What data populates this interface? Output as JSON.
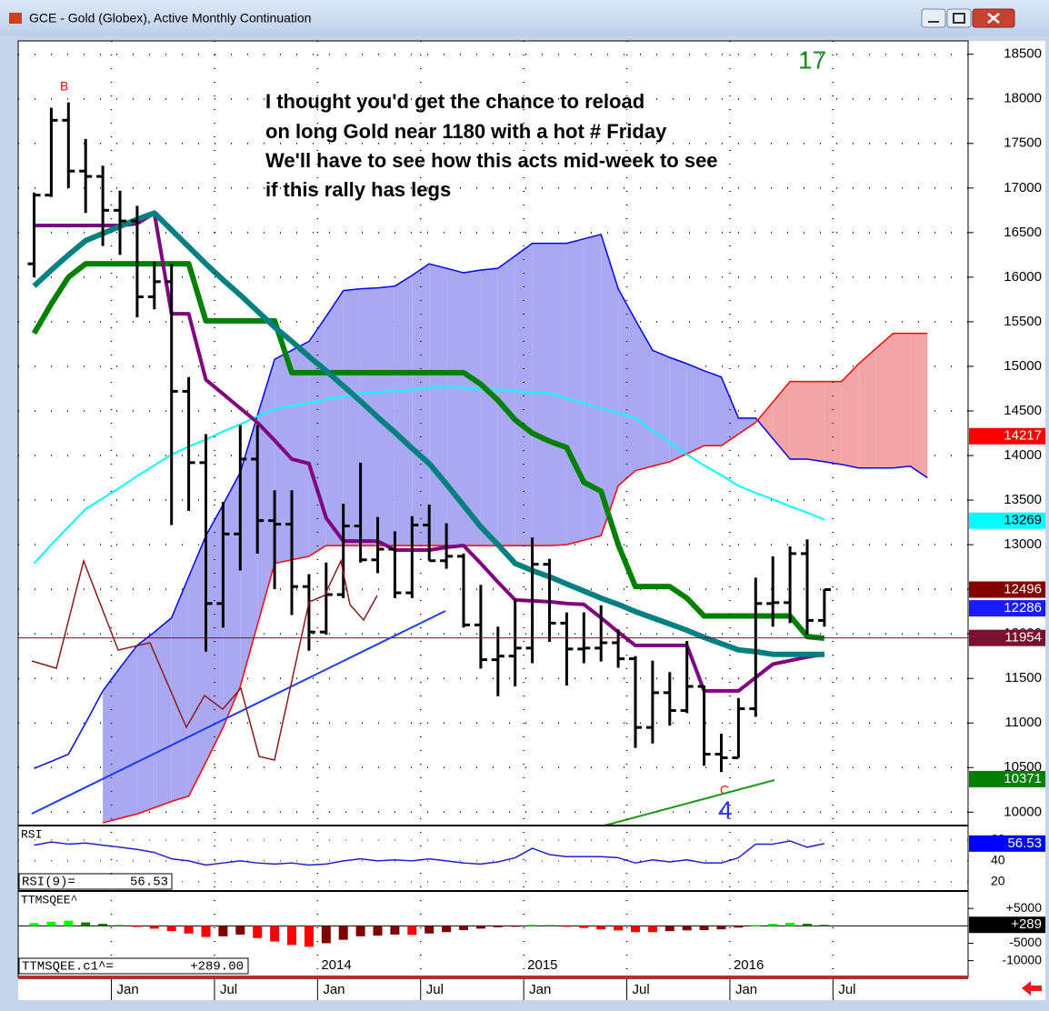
{
  "window": {
    "title": "GCE - Gold (Globex), Active Monthly Continuation"
  },
  "chart_data": {
    "type": "ohlc",
    "categories": [
      null,
      null,
      null,
      null,
      null,
      "Jan",
      null,
      null,
      null,
      null,
      null,
      "Jul",
      null,
      null,
      null,
      null,
      null,
      "Jan",
      null,
      null,
      null,
      null,
      null,
      "Jul",
      null,
      null,
      null,
      null,
      null,
      "Jan",
      null,
      null,
      null,
      null,
      null,
      "Jul",
      null,
      null,
      null,
      null,
      null,
      "Jan",
      null,
      null,
      null,
      null,
      null,
      "Jul",
      null,
      null,
      null,
      null,
      null
    ],
    "years": [
      "2014",
      "2015",
      "2016"
    ],
    "open": [
      16150,
      16920,
      17760,
      17190,
      17130,
      16750,
      16630,
      15780,
      15950,
      14720,
      13920,
      12340,
      13120,
      13960,
      13270,
      13230,
      12530,
      12020,
      12440,
      13210,
      12830,
      12950,
      12460,
      13220,
      12820,
      12870,
      12100,
      11710,
      11750,
      11840,
      12780,
      12120,
      11830,
      11840,
      11900,
      11720,
      10950,
      11340,
      11140,
      11410,
      10650,
      10610,
      11160,
      12340,
      12350,
      12900,
      12150,
      null,
      null,
      null,
      null,
      null,
      null
    ],
    "high": [
      16950,
      17900,
      17960,
      17550,
      17250,
      16970,
      16800,
      16170,
      16150,
      14880,
      14240,
      13480,
      14340,
      14340,
      13610,
      13610,
      12670,
      12800,
      13460,
      13920,
      13310,
      13150,
      13320,
      13450,
      13240,
      12900,
      12550,
      12080,
      12390,
      13080,
      12840,
      12240,
      12240,
      12320,
      12050,
      11750,
      11700,
      11570,
      11920,
      11420,
      10880,
      11280,
      12630,
      12870,
      12980,
      13060,
      12500,
      null,
      null,
      null,
      null,
      null,
      null
    ],
    "low": [
      16000,
      16900,
      17000,
      16720,
      16350,
      16250,
      15550,
      15640,
      13220,
      13380,
      11800,
      12070,
      12710,
      12900,
      12500,
      12210,
      11810,
      11990,
      12400,
      12800,
      12680,
      12400,
      12400,
      12820,
      12730,
      12070,
      11610,
      11300,
      11410,
      11670,
      11910,
      11420,
      11670,
      11690,
      11620,
      10720,
      10770,
      10970,
      11110,
      10520,
      10450,
      10610,
      11070,
      12080,
      12120,
      11990,
      12080,
      null,
      null,
      null,
      null,
      null,
      null
    ],
    "close": [
      16920,
      17760,
      17190,
      17130,
      16750,
      16630,
      15780,
      15950,
      14720,
      13920,
      12340,
      13120,
      13960,
      13270,
      13230,
      12530,
      12020,
      12440,
      13210,
      12830,
      12950,
      12460,
      13220,
      12820,
      12870,
      12100,
      11710,
      11750,
      11840,
      12780,
      12120,
      11830,
      11840,
      11900,
      11720,
      10950,
      11340,
      11140,
      11410,
      10650,
      10610,
      11160,
      12340,
      12350,
      12900,
      12150,
      12496,
      null,
      null,
      null,
      null,
      null,
      null
    ],
    "bar_color": "#000000",
    "ylim": [
      9850,
      18650
    ],
    "yticks": [
      10000,
      10500,
      11000,
      11500,
      12000,
      12500,
      13000,
      13500,
      14000,
      14500,
      15000,
      15500,
      16000,
      16500,
      17000,
      17500,
      18000,
      18500
    ],
    "grid": true,
    "overlays": [
      {
        "color": "#00ffff",
        "width": 2,
        "values": [
          12790,
          13000,
          13200,
          13400,
          13520,
          13640,
          13770,
          13890,
          14010,
          14100,
          14180,
          14270,
          14350,
          14440,
          14520,
          14560,
          14590,
          14630,
          14660,
          14700,
          14710,
          14730,
          14740,
          14760,
          14770,
          14760,
          14750,
          14740,
          14720,
          14710,
          14700,
          14640,
          14590,
          14530,
          14480,
          14420,
          14280,
          14150,
          14010,
          13890,
          13780,
          13660,
          13580,
          13510,
          13430,
          13360,
          13280,
          null,
          null,
          null,
          null,
          null,
          null
        ]
      },
      {
        "color": "#008000",
        "width": 6,
        "values": [
          15370,
          15700,
          16000,
          16150,
          16150,
          16150,
          16150,
          16150,
          16150,
          16150,
          15510,
          15510,
          15510,
          15510,
          15510,
          14930,
          14930,
          14930,
          14930,
          14930,
          14930,
          14930,
          14930,
          14930,
          14930,
          14930,
          14800,
          14620,
          14400,
          14250,
          14160,
          14090,
          13700,
          13600,
          13000,
          12530,
          12530,
          12530,
          12400,
          12200,
          12200,
          12200,
          12200,
          12200,
          12200,
          11970,
          11950,
          null,
          null,
          null,
          null,
          null,
          null
        ]
      },
      {
        "color": "#800080",
        "width": 4,
        "values": [
          16580,
          16580,
          16580,
          16580,
          16580,
          16580,
          16600,
          16720,
          15590,
          15590,
          14850,
          14690,
          14530,
          14370,
          14170,
          13960,
          13910,
          13300,
          13040,
          13040,
          13040,
          12940,
          12940,
          12940,
          12970,
          12990,
          12790,
          12580,
          12380,
          12370,
          12360,
          12340,
          12330,
          12180,
          12020,
          11870,
          11870,
          11870,
          11870,
          11360,
          11360,
          11360,
          11510,
          11660,
          11700,
          11740,
          11770,
          null,
          null,
          null,
          null,
          null,
          null
        ]
      },
      {
        "color": "#008080",
        "width": 6,
        "values": [
          15900,
          16080,
          16250,
          16410,
          16490,
          16570,
          16650,
          16720,
          16530,
          16340,
          16150,
          15970,
          15800,
          15620,
          15440,
          15280,
          15110,
          14950,
          14780,
          14610,
          14430,
          14260,
          14080,
          13910,
          13680,
          13440,
          13200,
          13000,
          12790,
          12710,
          12640,
          12560,
          12480,
          12400,
          12330,
          12250,
          12180,
          12110,
          12040,
          11960,
          11890,
          11820,
          11800,
          11770,
          11770,
          11770,
          11770,
          null,
          null,
          null,
          null,
          null,
          null
        ]
      }
    ],
    "cloud": {
      "upper": {
        "color": "#0000ff",
        "values": [
          10490,
          10570,
          10650,
          11000,
          11360,
          11620,
          11870,
          12020,
          12180,
          12640,
          13100,
          13450,
          13810,
          14450,
          15080,
          15180,
          15280,
          15560,
          15850,
          15870,
          15880,
          15900,
          16020,
          16150,
          16100,
          16050,
          16080,
          16100,
          16240,
          16380,
          16380,
          16380,
          16430,
          16480,
          15870,
          15520,
          15180,
          15100,
          15030,
          14950,
          14880,
          14420,
          14420,
          14190,
          13960,
          13960,
          13930,
          13900,
          13860,
          13860,
          13860,
          13880,
          13750
        ]
      },
      "lower": {
        "color": "#ff0000",
        "values": [
          null,
          null,
          null,
          null,
          9880,
          9930,
          9980,
          10050,
          10120,
          10180,
          10560,
          10950,
          11410,
          12100,
          12790,
          12830,
          12870,
          12990,
          12990,
          12990,
          12990,
          12990,
          12990,
          12990,
          12990,
          12990,
          12990,
          12990,
          12990,
          12990,
          12990,
          13000,
          13050,
          13100,
          13660,
          13830,
          13880,
          13930,
          14020,
          14110,
          14110,
          14240,
          14370,
          14600,
          14830,
          14830,
          14830,
          14830,
          15030,
          15200,
          15370,
          15370,
          15370
        ]
      },
      "fill_up": "#a9a9f2",
      "fill_down": "#f2a5a5"
    },
    "price_tags": [
      {
        "value": 14217,
        "color": "#ff0000"
      },
      {
        "value": 13269,
        "color": "#00ffff"
      },
      {
        "value": 12496,
        "color": "#800000"
      },
      {
        "value": 12286,
        "color": "#1a1aff"
      },
      {
        "value": 11954,
        "color": "#7a1030"
      },
      {
        "value": 10371,
        "color": "#008000"
      }
    ],
    "annotations": [
      {
        "text": "I thought you'd get the chance to reload",
        "color": "#000000"
      },
      {
        "text": "on long Gold near 1180 with a hot # Friday",
        "color": "#000000"
      },
      {
        "text": "We'll have to see how this acts mid-week to see",
        "color": "#000000"
      },
      {
        "text": "if this rally has legs",
        "color": "#000000"
      },
      {
        "text": "17",
        "color": "#228b22"
      },
      {
        "text": "B",
        "color": "#ff0000"
      },
      {
        "text": "C",
        "color": "#ff0000"
      },
      {
        "text": "4",
        "color": "#3030ff"
      }
    ],
    "rsi": {
      "label": "RSI",
      "readout_label": "RSI(9)=",
      "color": "#2020d0",
      "ylim": [
        13,
        72
      ],
      "yticks": [
        20,
        40,
        60
      ],
      "values": [
        55,
        58,
        56,
        57,
        55,
        53,
        51,
        48,
        42,
        40,
        36,
        38,
        40,
        38,
        37,
        38,
        36,
        37,
        40,
        42,
        40,
        41,
        40,
        42,
        40,
        38,
        37,
        39,
        43,
        52,
        46,
        44,
        44,
        44,
        43,
        38,
        41,
        39,
        41,
        38,
        38,
        43,
        56,
        56,
        59,
        53,
        56.53,
        null,
        null,
        null,
        null,
        null,
        null
      ],
      "tag_color": "#0000ff"
    },
    "ttm": {
      "label": "TTMSQEE^",
      "readout_label": "TTMSQEE.c1^=",
      "ylim": [
        -13500,
        9500
      ],
      "yticks": [
        {
          "value": 5000,
          "label": "+5000"
        },
        -5000,
        -10000
      ],
      "values": [
        800,
        1200,
        1500,
        1000,
        600,
        200,
        -300,
        -800,
        -1500,
        -2200,
        -3200,
        -3000,
        -2500,
        -3500,
        -4500,
        -5500,
        -6000,
        -5000,
        -4000,
        -3000,
        -2800,
        -2500,
        -2600,
        -2200,
        -1800,
        -1200,
        -800,
        -400,
        -200,
        300,
        200,
        -200,
        -600,
        -1000,
        -1300,
        -1800,
        -1800,
        -1500,
        -1300,
        -1200,
        -1000,
        -500,
        200,
        600,
        900,
        600,
        289,
        null,
        null,
        null,
        null,
        null,
        null
      ],
      "colors": {
        "pos_up": "#00ff00",
        "pos_down": "#008000",
        "neg_down": "#ff0000",
        "neg_up": "#800000"
      },
      "readout": {
        "value": 289,
        "label": "+289.00"
      },
      "tag": {
        "value": 289,
        "label": "+289",
        "color": "#000000"
      }
    }
  }
}
